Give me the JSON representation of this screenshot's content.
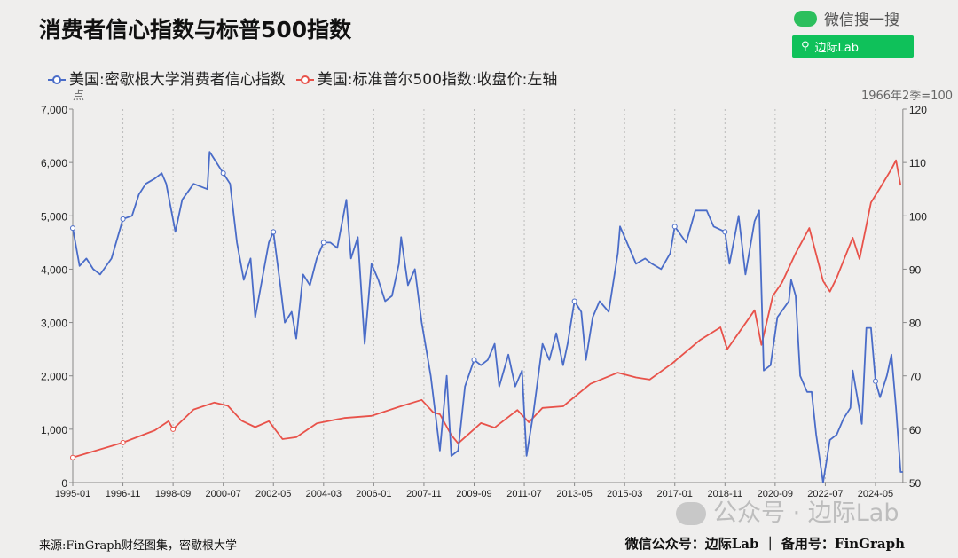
{
  "title": "消费者信心指数与标普500指数",
  "wechat": {
    "label": "微信搜一搜",
    "search_text": "边际Lab",
    "icon": "wechat-icon",
    "search_icon": "search-icon"
  },
  "footer": {
    "source": "来源:FinGraph财经图集，密歇根大学",
    "account": "微信公众号：边际Lab ｜ 备用号：FinGraph",
    "watermark": "公众号 · 边际Lab"
  },
  "chart_data": {
    "type": "line",
    "title": "消费者信心指数与标普500指数",
    "left_axis": {
      "label": "点",
      "range": [
        0,
        7000
      ],
      "ticks": [
        "0",
        "1,000",
        "2,000",
        "3,000",
        "4,000",
        "5,000",
        "6,000",
        "7,000"
      ]
    },
    "right_axis": {
      "label": "1966年2季=100",
      "range": [
        50,
        120
      ],
      "ticks": [
        "50",
        "60",
        "70",
        "80",
        "90",
        "100",
        "110",
        "120"
      ]
    },
    "x_ticks": [
      "1995-01",
      "1996-11",
      "1998-09",
      "2000-07",
      "2002-05",
      "2004-03",
      "2006-01",
      "2007-11",
      "2009-09",
      "2011-07",
      "2013-05",
      "2015-03",
      "2017-01",
      "2018-11",
      "2020-09",
      "2022-07",
      "2024-05"
    ],
    "x_range": [
      "1995-01",
      "2025-05"
    ],
    "grid": "vertical dotted",
    "legend_position": "top-left",
    "series": [
      {
        "name": "美国:密歇根大学消费者信心指数",
        "axis": "right",
        "color": "#4a6cc8",
        "points": [
          [
            "1995-01",
            97.7
          ],
          [
            "1995-04",
            90.6
          ],
          [
            "1995-07",
            92
          ],
          [
            "1995-10",
            90
          ],
          [
            "1996-01",
            89
          ],
          [
            "1996-06",
            92
          ],
          [
            "1996-11",
            99.4
          ],
          [
            "1997-03",
            100
          ],
          [
            "1997-06",
            104
          ],
          [
            "1997-09",
            106
          ],
          [
            "1998-01",
            107
          ],
          [
            "1998-04",
            108
          ],
          [
            "1998-06",
            106
          ],
          [
            "1998-10",
            97
          ],
          [
            "1999-01",
            103
          ],
          [
            "1999-06",
            106
          ],
          [
            "1999-12",
            105
          ],
          [
            "2000-01",
            112
          ],
          [
            "2000-04",
            110
          ],
          [
            "2000-07",
            108
          ],
          [
            "2000-10",
            106
          ],
          [
            "2001-01",
            95
          ],
          [
            "2001-04",
            88
          ],
          [
            "2001-07",
            92
          ],
          [
            "2001-09",
            81
          ],
          [
            "2001-12",
            88
          ],
          [
            "2002-03",
            95
          ],
          [
            "2002-05",
            97
          ],
          [
            "2002-08",
            87
          ],
          [
            "2002-10",
            80
          ],
          [
            "2003-01",
            82
          ],
          [
            "2003-03",
            77
          ],
          [
            "2003-06",
            89
          ],
          [
            "2003-09",
            87
          ],
          [
            "2003-12",
            92
          ],
          [
            "2004-03",
            95
          ],
          [
            "2004-06",
            95
          ],
          [
            "2004-09",
            94
          ],
          [
            "2005-01",
            103
          ],
          [
            "2005-03",
            92
          ],
          [
            "2005-06",
            96
          ],
          [
            "2005-09",
            76
          ],
          [
            "2005-12",
            91
          ],
          [
            "2006-03",
            88
          ],
          [
            "2006-06",
            84
          ],
          [
            "2006-09",
            85
          ],
          [
            "2006-12",
            91
          ],
          [
            "2007-01",
            96
          ],
          [
            "2007-04",
            87
          ],
          [
            "2007-07",
            90
          ],
          [
            "2007-10",
            80
          ],
          [
            "2007-12",
            75
          ],
          [
            "2008-02",
            70
          ],
          [
            "2008-06",
            56
          ],
          [
            "2008-09",
            70
          ],
          [
            "2008-11",
            55
          ],
          [
            "2009-02",
            56
          ],
          [
            "2009-05",
            68
          ],
          [
            "2009-09",
            73
          ],
          [
            "2009-12",
            72
          ],
          [
            "2010-03",
            73
          ],
          [
            "2010-06",
            76
          ],
          [
            "2010-08",
            68
          ],
          [
            "2010-12",
            74
          ],
          [
            "2011-03",
            68
          ],
          [
            "2011-06",
            71
          ],
          [
            "2011-08",
            55
          ],
          [
            "2011-11",
            63
          ],
          [
            "2012-03",
            76
          ],
          [
            "2012-06",
            73
          ],
          [
            "2012-09",
            78
          ],
          [
            "2012-12",
            72
          ],
          [
            "2013-02",
            76
          ],
          [
            "2013-05",
            84
          ],
          [
            "2013-08",
            82
          ],
          [
            "2013-10",
            73
          ],
          [
            "2014-01",
            81
          ],
          [
            "2014-04",
            84
          ],
          [
            "2014-08",
            82
          ],
          [
            "2014-12",
            93
          ],
          [
            "2015-01",
            98
          ],
          [
            "2015-04",
            95
          ],
          [
            "2015-08",
            91
          ],
          [
            "2015-12",
            92
          ],
          [
            "2016-03",
            91
          ],
          [
            "2016-07",
            90
          ],
          [
            "2016-11",
            93
          ],
          [
            "2017-01",
            98
          ],
          [
            "2017-06",
            95
          ],
          [
            "2017-10",
            101
          ],
          [
            "2018-03",
            101
          ],
          [
            "2018-06",
            98
          ],
          [
            "2018-11",
            97
          ],
          [
            "2019-01",
            91
          ],
          [
            "2019-05",
            100
          ],
          [
            "2019-08",
            89
          ],
          [
            "2019-12",
            99
          ],
          [
            "2020-02",
            101
          ],
          [
            "2020-04",
            71
          ],
          [
            "2020-07",
            72
          ],
          [
            "2020-10",
            81
          ],
          [
            "2021-03",
            84
          ],
          [
            "2021-04",
            88
          ],
          [
            "2021-06",
            85
          ],
          [
            "2021-08",
            70
          ],
          [
            "2021-11",
            67
          ],
          [
            "2022-01",
            67
          ],
          [
            "2022-03",
            59
          ],
          [
            "2022-06",
            50
          ],
          [
            "2022-09",
            58
          ],
          [
            "2022-12",
            59
          ],
          [
            "2023-03",
            62
          ],
          [
            "2023-06",
            64
          ],
          [
            "2023-07",
            71
          ],
          [
            "2023-11",
            61
          ],
          [
            "2024-01",
            79
          ],
          [
            "2024-03",
            79
          ],
          [
            "2024-05",
            69
          ],
          [
            "2024-07",
            66
          ],
          [
            "2024-10",
            70
          ],
          [
            "2024-12",
            74
          ],
          [
            "2025-02",
            64
          ],
          [
            "2025-04",
            52
          ],
          [
            "2025-05",
            52
          ]
        ]
      },
      {
        "name": "美国:标准普尔500指数:收盘价:左轴",
        "axis": "left",
        "color": "#e8524a",
        "points": [
          [
            "1995-01",
            470
          ],
          [
            "1996-11",
            750
          ],
          [
            "1998-01",
            980
          ],
          [
            "1998-07",
            1150
          ],
          [
            "1998-09",
            1000
          ],
          [
            "1999-06",
            1370
          ],
          [
            "2000-03",
            1500
          ],
          [
            "2000-09",
            1440
          ],
          [
            "2001-03",
            1160
          ],
          [
            "2001-09",
            1040
          ],
          [
            "2002-03",
            1150
          ],
          [
            "2002-09",
            815
          ],
          [
            "2003-03",
            850
          ],
          [
            "2003-12",
            1110
          ],
          [
            "2004-12",
            1210
          ],
          [
            "2005-12",
            1250
          ],
          [
            "2006-12",
            1420
          ],
          [
            "2007-10",
            1550
          ],
          [
            "2008-03",
            1320
          ],
          [
            "2008-06",
            1280
          ],
          [
            "2008-11",
            890
          ],
          [
            "2009-02",
            735
          ],
          [
            "2009-12",
            1115
          ],
          [
            "2010-06",
            1030
          ],
          [
            "2011-04",
            1360
          ],
          [
            "2011-09",
            1130
          ],
          [
            "2012-03",
            1400
          ],
          [
            "2012-12",
            1430
          ],
          [
            "2013-12",
            1850
          ],
          [
            "2014-12",
            2060
          ],
          [
            "2015-08",
            1970
          ],
          [
            "2016-02",
            1930
          ],
          [
            "2016-12",
            2240
          ],
          [
            "2017-12",
            2670
          ],
          [
            "2018-09",
            2910
          ],
          [
            "2018-12",
            2500
          ],
          [
            "2019-12",
            3230
          ],
          [
            "2020-03",
            2580
          ],
          [
            "2020-08",
            3500
          ],
          [
            "2020-12",
            3750
          ],
          [
            "2021-06",
            4300
          ],
          [
            "2021-12",
            4770
          ],
          [
            "2022-06",
            3780
          ],
          [
            "2022-09",
            3580
          ],
          [
            "2022-12",
            3840
          ],
          [
            "2023-07",
            4590
          ],
          [
            "2023-10",
            4190
          ],
          [
            "2024-03",
            5250
          ],
          [
            "2024-07",
            5520
          ],
          [
            "2024-12",
            5880
          ],
          [
            "2025-02",
            6040
          ],
          [
            "2025-04",
            5570
          ]
        ]
      }
    ]
  }
}
